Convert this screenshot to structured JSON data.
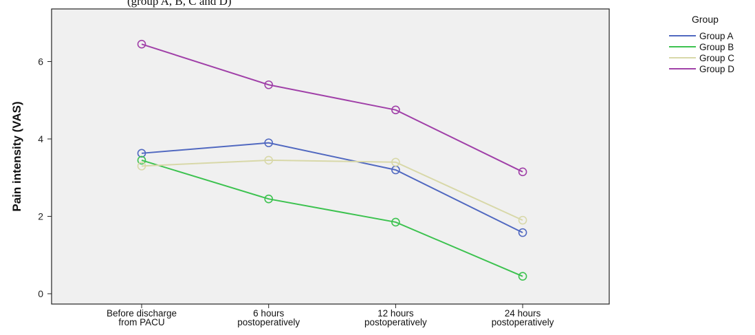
{
  "cropped_caption": "(group A, B, C and D)",
  "chart_data": {
    "type": "line",
    "title": "",
    "xlabel": "",
    "ylabel": "Pain intensity (VAS)",
    "categories": [
      [
        "Before discharge",
        "from PACU"
      ],
      [
        "6 hours",
        "postoperatively"
      ],
      [
        "12 hours",
        "postoperatively"
      ],
      [
        "24 hours",
        "postoperatively"
      ]
    ],
    "ylim": [
      -0.4,
      7.3
    ],
    "yticks": [
      0,
      2,
      4,
      6
    ],
    "grid": false,
    "legend": {
      "title": "Group",
      "placement": "right"
    },
    "marker": "open-circle",
    "series": [
      {
        "name": "Group A",
        "color": "#5068c0",
        "values": [
          3.63,
          3.9,
          3.2,
          1.58
        ]
      },
      {
        "name": "Group B",
        "color": "#3cc24f",
        "values": [
          3.45,
          2.45,
          1.85,
          0.45
        ]
      },
      {
        "name": "Group C",
        "color": "#d8d8a8",
        "values": [
          3.3,
          3.45,
          3.4,
          1.9
        ]
      },
      {
        "name": "Group D",
        "color": "#a040a8",
        "values": [
          6.45,
          5.4,
          4.75,
          3.15
        ]
      }
    ]
  }
}
